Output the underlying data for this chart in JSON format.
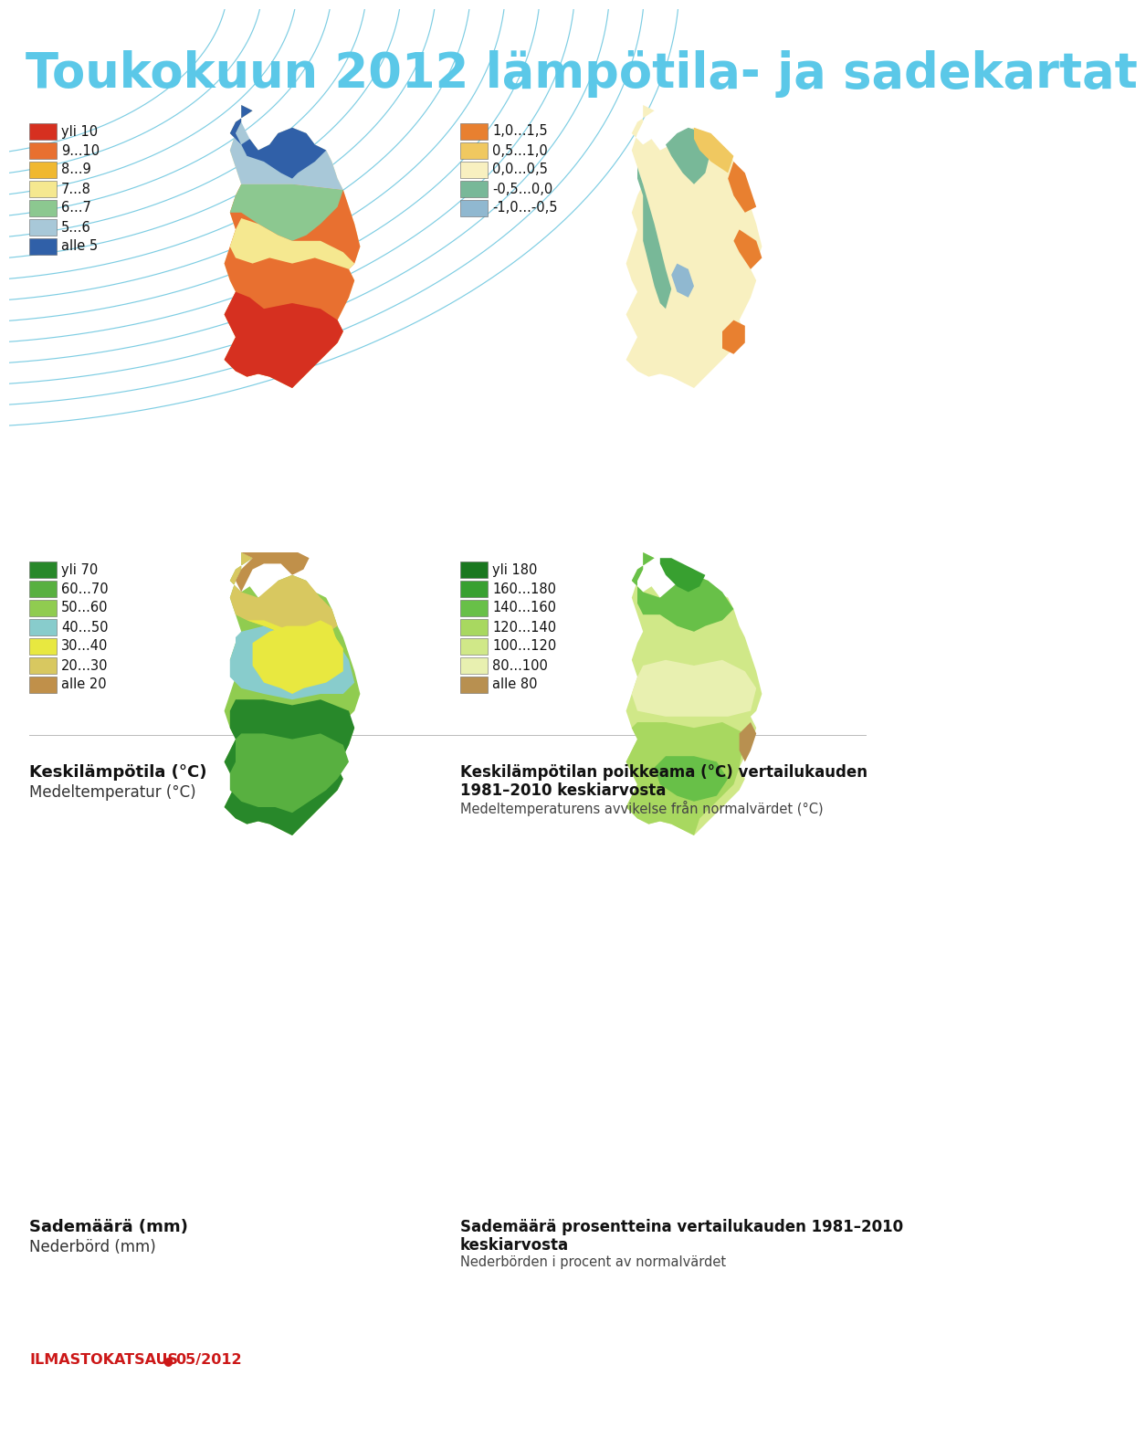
{
  "title": "Toukokuun 2012 lämpötila- ja sadekartat",
  "title_color": "#5BC8E8",
  "background_color": "#FFFFFF",
  "legend1_items": [
    {
      "label": "yli 10",
      "color": "#D63020"
    },
    {
      "label": "9...10",
      "color": "#E87030"
    },
    {
      "label": "8...9",
      "color": "#F0B830"
    },
    {
      "label": "7...8",
      "color": "#F5E890"
    },
    {
      "label": "6...7",
      "color": "#8CC890"
    },
    {
      "label": "5...6",
      "color": "#A8C8D8"
    },
    {
      "label": "alle 5",
      "color": "#3060A8"
    }
  ],
  "legend2_items": [
    {
      "label": "1,0...1,5",
      "color": "#E88030"
    },
    {
      "label": "0,5...1,0",
      "color": "#F0C860"
    },
    {
      "label": "0,0...0,5",
      "color": "#F8F0C0"
    },
    {
      "label": "-0,5...0,0",
      "color": "#78B898"
    },
    {
      "label": "-1,0...-0,5",
      "color": "#90B8D0"
    }
  ],
  "legend3_items": [
    {
      "label": "yli 70",
      "color": "#28882A"
    },
    {
      "label": "60...70",
      "color": "#58B040"
    },
    {
      "label": "50...60",
      "color": "#90CC50"
    },
    {
      "label": "40...50",
      "color": "#88CCCC"
    },
    {
      "label": "30...40",
      "color": "#E8E840"
    },
    {
      "label": "20...30",
      "color": "#D8C860"
    },
    {
      "label": "alle 20",
      "color": "#C0904A"
    }
  ],
  "legend4_items": [
    {
      "label": "yli 180",
      "color": "#1A7820"
    },
    {
      "label": "160...180",
      "color": "#38A030"
    },
    {
      "label": "140...160",
      "color": "#68C048"
    },
    {
      "label": "120...140",
      "color": "#A8D860"
    },
    {
      "label": "100...120",
      "color": "#D0E888"
    },
    {
      "label": "80...100",
      "color": "#E8F0B0"
    },
    {
      "label": "alle 80",
      "color": "#B89050"
    }
  ],
  "caption1_line1": "Keskilämpötila (°C)",
  "caption1_line2": "Medeltemperatur (°C)",
  "caption2_line1": "Keskilämpötilan poikkeama (°C) vertailukauden",
  "caption2_line2": "1981–2010 keskiarvosta",
  "caption2_line3": "Medeltemperaturens avvikelse från normalvärdet (°C)",
  "caption3_line1": "Sademäärä (mm)",
  "caption3_line2": "Nederbörd (mm)",
  "caption4_line1": "Sademäärä prosentteina vertailukauden 1981–2010",
  "caption4_line2": "keskiarvosta",
  "caption4_line3": "Nederbörden i procent av normalvärdet",
  "footer": "ILMASTOKATSAUS",
  "footer_sep": "●",
  "footer_month": "05/2012",
  "footer_color": "#CC1818",
  "arc_color": "#70C8E0"
}
